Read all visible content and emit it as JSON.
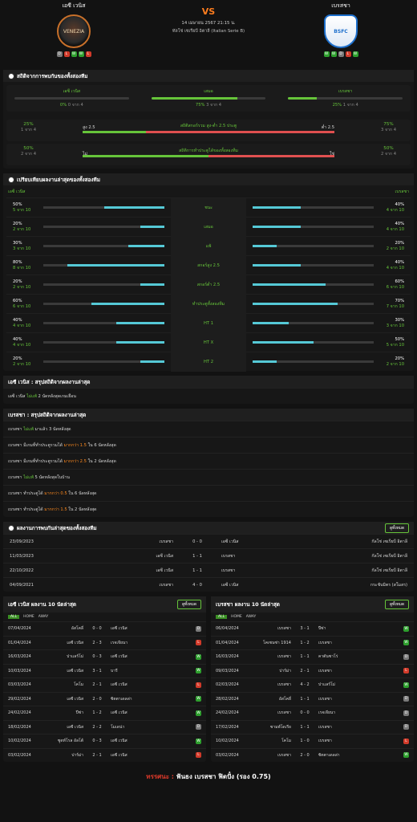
{
  "header": {
    "home": {
      "name": "เอซี เวนิส",
      "crest": "VENEZIA",
      "form": [
        "D",
        "L",
        "W",
        "W",
        "L"
      ]
    },
    "vs": "VS",
    "date": "14 เมษายน 2567 21:15 น.",
    "league": "ทัลโช่ เซเรียบี อิตาลี (Italian Serie B)",
    "away": {
      "name": "เบรสชา",
      "crest": "BSFC",
      "form": [
        "W",
        "W",
        "D",
        "L",
        "W"
      ]
    }
  },
  "h2h_stats": {
    "title": "สถิติจากการพบกันของทั้งสองทีม",
    "cols": [
      {
        "name": "เอซี เวนิส",
        "pct": "0%",
        "n": "0 จาก 4",
        "v": 0
      },
      {
        "name": "เสมอ",
        "pct": "75%",
        "n": "3 จาก 4",
        "v": 75
      },
      {
        "name": "เบรสชา",
        "pct": "25%",
        "n": "1 จาก 4",
        "v": 25
      }
    ],
    "ou": {
      "title": "สถิติสกอร์รวม สูง-ต่ำ 2.5 ประตู",
      "lp": "25%",
      "ln": "1 จาก 4",
      "over": "สูง 2.5",
      "under": "ต่ำ 2.5",
      "rp": "75%",
      "rn": "3 จาก 4",
      "v": 25
    },
    "btts": {
      "title": "สถิติการทำประตูได้ของทั้งสองทีม",
      "lp": "50%",
      "ln": "2 จาก 4",
      "yes": "ใช่",
      "no": "ไม่",
      "rp": "50%",
      "rn": "2 จาก 4",
      "v": 50
    }
  },
  "compare": {
    "title": "เปรียบเทียบผลงานล่าสุดของทั้งสองทีม",
    "home": "เอซี เวนิส",
    "away": "เบรสชา",
    "rows": [
      {
        "lp": "50%",
        "ln": "5 จาก 10",
        "label": "ชนะ",
        "rp": "40%",
        "rn": "4 จาก 10",
        "l": 50,
        "r": 40
      },
      {
        "lp": "20%",
        "ln": "2 จาก 10",
        "label": "เสมอ",
        "rp": "40%",
        "rn": "4 จาก 10",
        "l": 20,
        "r": 40
      },
      {
        "lp": "30%",
        "ln": "3 จาก 10",
        "label": "แพ้",
        "rp": "20%",
        "rn": "2 จาก 10",
        "l": 30,
        "r": 20
      },
      {
        "lp": "80%",
        "ln": "8 จาก 10",
        "label": "สกอร์สูง 2.5",
        "rp": "40%",
        "rn": "4 จาก 10",
        "l": 80,
        "r": 40
      },
      {
        "lp": "20%",
        "ln": "2 จาก 10",
        "label": "สกอร์ต่ำ 2.5",
        "rp": "60%",
        "rn": "6 จาก 10",
        "l": 20,
        "r": 60
      },
      {
        "lp": "60%",
        "ln": "6 จาก 10",
        "label": "ทำประตูทั้งสองทีม",
        "rp": "70%",
        "rn": "7 จาก 10",
        "l": 60,
        "r": 70
      },
      {
        "lp": "40%",
        "ln": "4 จาก 10",
        "label": "HT 1",
        "rp": "30%",
        "rn": "3 จาก 10",
        "l": 40,
        "r": 30
      },
      {
        "lp": "40%",
        "ln": "4 จาก 10",
        "label": "HT X",
        "rp": "50%",
        "rn": "5 จาก 10",
        "l": 40,
        "r": 50
      },
      {
        "lp": "20%",
        "ln": "2 จาก 10",
        "label": "HT 2",
        "rp": "20%",
        "rn": "2 จาก 10",
        "l": 20,
        "r": 20
      }
    ]
  },
  "home_summary": {
    "title": "เอซี เวนิส : สรุปสถิติจากผลงานล่าสุด",
    "lines": [
      [
        "เอซี เวนิส ",
        "ไม่แพ้",
        " 2 นัดหลังสุดเกมเยือน"
      ]
    ]
  },
  "away_summary": {
    "title": "เบรสชา : สรุปสถิติจากผลงานล่าสุด",
    "lines": [
      [
        "เบรสชา ",
        "ไม่แพ้",
        " มาแล้ว 3 นัดหลังสุด"
      ],
      [
        "เบรสชา มีเกมที่ทำประตูรวมได้ ",
        "มากกว่า 1.5",
        " ใน 6 นัดหลังสุด"
      ],
      [
        "เบรสชา มีเกมที่ทำประตูรวมได้ ",
        "มากกว่า 2.5",
        " ใน 2 นัดหลังสุด"
      ],
      [
        "เบรสชา ",
        "ไม่แพ้",
        " 5 นัดหลังสุดในบ้าน"
      ],
      [
        "เบรสชา ทำประตูได้ ",
        "มากกว่า 0.5",
        " ใน 6 นัดหลังสุด"
      ],
      [
        "เบรสชา ทำประตูได้ ",
        "มากกว่า 1.5",
        " ใน 2 นัดหลังสุด"
      ]
    ]
  },
  "h2h": {
    "title": "ผลงานการพบกันล่าสุดของทั้งสองทีม",
    "button": "ดูทั้งหมด",
    "rows": [
      [
        "23/09/2023",
        "เบรสชา",
        "0 - 0",
        "เอซี เวนิส",
        "กัลโช่ เซเรียบี อิตาลี"
      ],
      [
        "11/03/2023",
        "เอซี เวนิส",
        "1 - 1",
        "เบรสชา",
        "กัลโช่ เซเรียบี อิตาลี"
      ],
      [
        "22/10/2022",
        "เอซี เวนิส",
        "1 - 1",
        "เบรสชา",
        "กัลโช่ เซเรียบี อิตาลี"
      ],
      [
        "04/09/2021",
        "เบรสชา",
        "4 - 0",
        "เอซี เวนิส",
        "กระชับมิตร (สโมสร)"
      ]
    ]
  },
  "last10": {
    "tabs": [
      "ALL",
      "HOME",
      "AWAY"
    ],
    "button": "ดูทั้งหมด",
    "home": {
      "title": "เอซี เวนิส ผลงาน 10 นัดล่าสุด",
      "rows": [
        [
          "07/04/2024",
          "อัสโคลี่",
          "0 - 0",
          "เอซี เวนิส",
          "D"
        ],
        [
          "01/04/2024",
          "เอซี เวนิส",
          "2 - 3",
          "เรจเจียนา",
          "L"
        ],
        [
          "16/03/2024",
          "ปาแลร์โม่",
          "0 - 3",
          "เอซี เวนิส",
          "W"
        ],
        [
          "10/03/2024",
          "เอซี เวนิส",
          "3 - 1",
          "บารี",
          "W"
        ],
        [
          "03/03/2024",
          "โคโม",
          "2 - 1",
          "เอซี เวนิส",
          "L"
        ],
        [
          "29/02/2024",
          "เอซี เวนิส",
          "2 - 0",
          "ซิตตาเดลล่า",
          "W"
        ],
        [
          "24/02/2024",
          "ปีซ่า",
          "1 - 2",
          "เอซี เวนิส",
          "W"
        ],
        [
          "18/02/2024",
          "เอซี เวนิส",
          "2 - 2",
          "โมเดน่า",
          "D"
        ],
        [
          "10/02/2024",
          "ซูดท์โรล อัลโต้",
          "0 - 3",
          "เอซี เวนิส",
          "W"
        ],
        [
          "03/02/2024",
          "ปาร์ม่า",
          "2 - 1",
          "เอซี เวนิส",
          "L"
        ]
      ]
    },
    "away": {
      "title": "เบรสชา ผลงาน 10 นัดล่าสุด",
      "rows": [
        [
          "06/04/2024",
          "เบรสชา",
          "3 - 1",
          "ปีซ่า",
          "W"
        ],
        [
          "01/04/2024",
          "โคเซนซ่า 1914",
          "1 - 2",
          "เบรสชา",
          "W"
        ],
        [
          "16/03/2024",
          "เบรสชา",
          "1 - 1",
          "คาตันซาโร่",
          "D"
        ],
        [
          "09/03/2024",
          "ปาร์ม่า",
          "2 - 1",
          "เบรสชา",
          "L"
        ],
        [
          "02/03/2024",
          "เบรสชา",
          "4 - 2",
          "ปาแลร์โม่",
          "W"
        ],
        [
          "28/02/2024",
          "อัสโคลี่",
          "1 - 1",
          "เบรสชา",
          "D"
        ],
        [
          "24/02/2024",
          "เบรสชา",
          "0 - 0",
          "เรจเจียนา",
          "D"
        ],
        [
          "17/02/2024",
          "ซามพ์โดเรีย",
          "1 - 1",
          "เบรสชา",
          "D"
        ],
        [
          "10/02/2024",
          "โคโม",
          "1 - 0",
          "เบรสชา",
          "L"
        ],
        [
          "03/02/2024",
          "เบรสชา",
          "2 - 0",
          "ซิตตาเดลล่า",
          "W"
        ]
      ]
    }
  },
  "prediction": {
    "label": "ทรรศนะ :",
    "text": "ฟันธง เบรสชา ฟิตปั๋ง (รอง 0.75)"
  },
  "colors": {
    "green": "#66c43a",
    "orange": "#ff8a1e",
    "bar": "#55c9d6",
    "red": "#e05050"
  }
}
